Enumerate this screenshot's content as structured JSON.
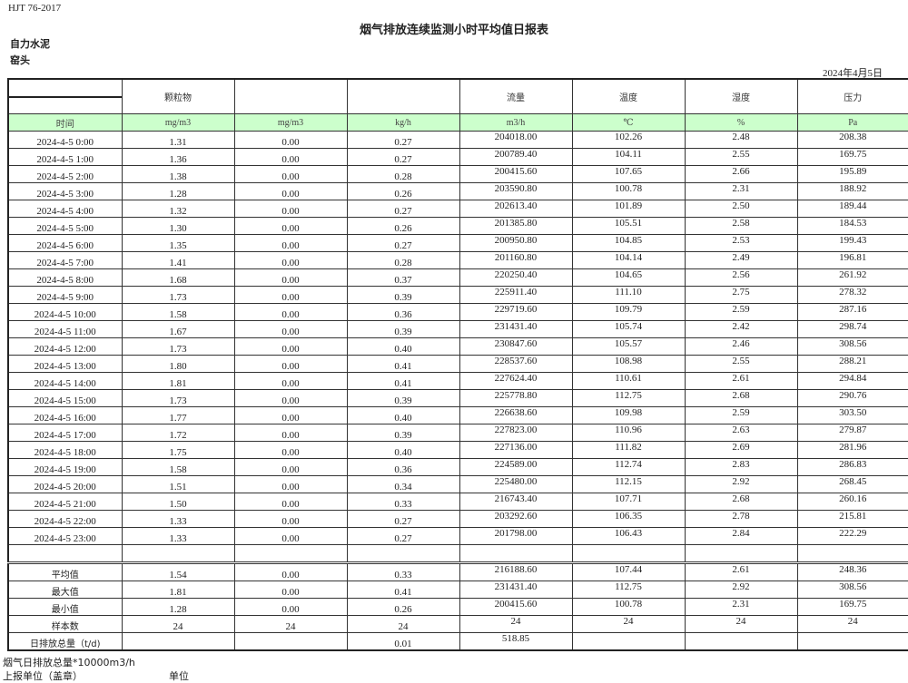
{
  "header": {
    "standard": "HJT  76-2017",
    "title": "烟气排放连续监测小时平均值日报表",
    "company": "自力水泥",
    "unit": "窑头",
    "date": "2024年4月5日"
  },
  "table": {
    "columns": [
      "",
      "颗粒物",
      "",
      "",
      "流量",
      "温度",
      "湿度",
      "压力"
    ],
    "units": [
      "时间",
      "mg/m3",
      "mg/m3",
      "kg/h",
      "m3/h",
      "℃",
      "%",
      "Pa"
    ],
    "rows": [
      [
        "2024-4-5 0:00",
        "1.31",
        "0.00",
        "0.27",
        "204018.00",
        "102.26",
        "2.48",
        "208.38"
      ],
      [
        "2024-4-5 1:00",
        "1.36",
        "0.00",
        "0.27",
        "200789.40",
        "104.11",
        "2.55",
        "169.75"
      ],
      [
        "2024-4-5 2:00",
        "1.38",
        "0.00",
        "0.28",
        "200415.60",
        "107.65",
        "2.66",
        "195.89"
      ],
      [
        "2024-4-5 3:00",
        "1.28",
        "0.00",
        "0.26",
        "203590.80",
        "100.78",
        "2.31",
        "188.92"
      ],
      [
        "2024-4-5 4:00",
        "1.32",
        "0.00",
        "0.27",
        "202613.40",
        "101.89",
        "2.50",
        "189.44"
      ],
      [
        "2024-4-5 5:00",
        "1.30",
        "0.00",
        "0.26",
        "201385.80",
        "105.51",
        "2.58",
        "184.53"
      ],
      [
        "2024-4-5 6:00",
        "1.35",
        "0.00",
        "0.27",
        "200950.80",
        "104.85",
        "2.53",
        "199.43"
      ],
      [
        "2024-4-5 7:00",
        "1.41",
        "0.00",
        "0.28",
        "201160.80",
        "104.14",
        "2.49",
        "196.81"
      ],
      [
        "2024-4-5 8:00",
        "1.68",
        "0.00",
        "0.37",
        "220250.40",
        "104.65",
        "2.56",
        "261.92"
      ],
      [
        "2024-4-5 9:00",
        "1.73",
        "0.00",
        "0.39",
        "225911.40",
        "111.10",
        "2.75",
        "278.32"
      ],
      [
        "2024-4-5 10:00",
        "1.58",
        "0.00",
        "0.36",
        "229719.60",
        "109.79",
        "2.59",
        "287.16"
      ],
      [
        "2024-4-5 11:00",
        "1.67",
        "0.00",
        "0.39",
        "231431.40",
        "105.74",
        "2.42",
        "298.74"
      ],
      [
        "2024-4-5 12:00",
        "1.73",
        "0.00",
        "0.40",
        "230847.60",
        "105.57",
        "2.46",
        "308.56"
      ],
      [
        "2024-4-5 13:00",
        "1.80",
        "0.00",
        "0.41",
        "228537.60",
        "108.98",
        "2.55",
        "288.21"
      ],
      [
        "2024-4-5 14:00",
        "1.81",
        "0.00",
        "0.41",
        "227624.40",
        "110.61",
        "2.61",
        "294.84"
      ],
      [
        "2024-4-5 15:00",
        "1.73",
        "0.00",
        "0.39",
        "225778.80",
        "112.75",
        "2.68",
        "290.76"
      ],
      [
        "2024-4-5 16:00",
        "1.77",
        "0.00",
        "0.40",
        "226638.60",
        "109.98",
        "2.59",
        "303.50"
      ],
      [
        "2024-4-5 17:00",
        "1.72",
        "0.00",
        "0.39",
        "227823.00",
        "110.96",
        "2.63",
        "279.87"
      ],
      [
        "2024-4-5 18:00",
        "1.75",
        "0.00",
        "0.40",
        "227136.00",
        "111.82",
        "2.69",
        "281.96"
      ],
      [
        "2024-4-5 19:00",
        "1.58",
        "0.00",
        "0.36",
        "224589.00",
        "112.74",
        "2.83",
        "286.83"
      ],
      [
        "2024-4-5 20:00",
        "1.51",
        "0.00",
        "0.34",
        "225480.00",
        "112.15",
        "2.92",
        "268.45"
      ],
      [
        "2024-4-5 21:00",
        "1.50",
        "0.00",
        "0.33",
        "216743.40",
        "107.71",
        "2.68",
        "260.16"
      ],
      [
        "2024-4-5 22:00",
        "1.33",
        "0.00",
        "0.27",
        "203292.60",
        "106.35",
        "2.78",
        "215.81"
      ],
      [
        "2024-4-5 23:00",
        "1.33",
        "0.00",
        "0.27",
        "201798.00",
        "106.43",
        "2.84",
        "222.29"
      ]
    ],
    "stats": [
      [
        "平均值",
        "1.54",
        "0.00",
        "0.33",
        "216188.60",
        "107.44",
        "2.61",
        "248.36"
      ],
      [
        "最大值",
        "1.81",
        "0.00",
        "0.41",
        "231431.40",
        "112.75",
        "2.92",
        "308.56"
      ],
      [
        "最小值",
        "1.28",
        "0.00",
        "0.26",
        "200415.60",
        "100.78",
        "2.31",
        "169.75"
      ],
      [
        "样本数",
        "24",
        "24",
        "24",
        "24",
        "24",
        "24",
        "24"
      ],
      [
        "日排放总量（t/d)",
        "",
        "",
        "0.01",
        "518.85",
        "",
        "",
        ""
      ]
    ]
  },
  "footer": {
    "note": "烟气日排放总量*10000m3/h",
    "reporter_label": "上报单位（盖章）",
    "reporter_value": "单位"
  },
  "colors": {
    "unit_row_bg": "#ccffcc"
  }
}
